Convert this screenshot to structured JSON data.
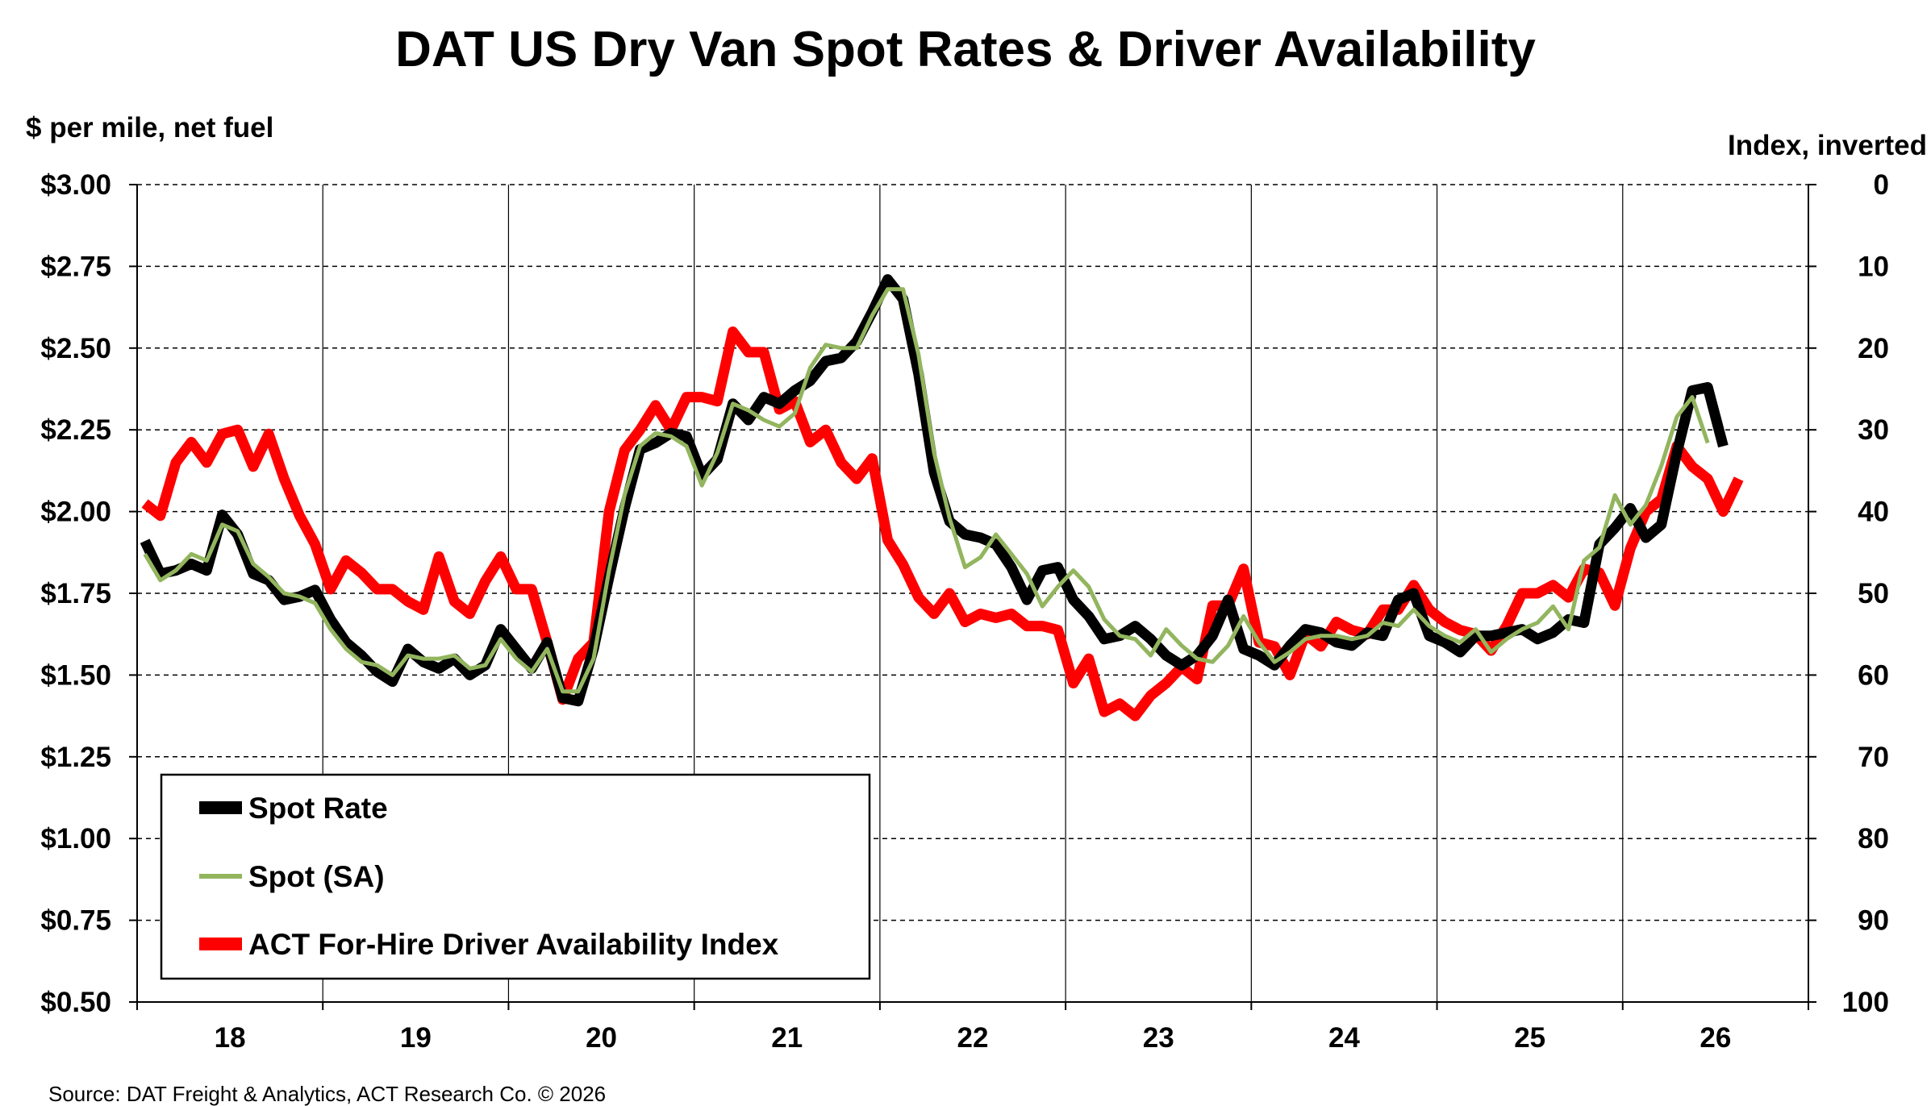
{
  "chart_data": {
    "type": "line",
    "title": "DAT US Dry Van Spot Rates & Driver Availability",
    "ylabel_left": "$ per mile, net fuel",
    "ylabel_right": "Index, inverted",
    "source": "Source: DAT Freight & Analytics, ACT Research Co. © 2026",
    "ylim_left": [
      0.5,
      3.0
    ],
    "ylim_right": [
      0,
      100
    ],
    "right_axis_inverted": true,
    "left_ticks": [
      "$3.00",
      "$2.75",
      "$2.50",
      "$2.25",
      "$2.00",
      "$1.75",
      "$1.50",
      "$1.25",
      "$1.00",
      "$0.75",
      "$0.50"
    ],
    "left_tick_values": [
      3.0,
      2.75,
      2.5,
      2.25,
      2.0,
      1.75,
      1.5,
      1.25,
      1.0,
      0.75,
      0.5
    ],
    "right_ticks": [
      "0",
      "10",
      "20",
      "30",
      "40",
      "50",
      "60",
      "70",
      "80",
      "90",
      "100"
    ],
    "right_tick_values": [
      0,
      10,
      20,
      30,
      40,
      50,
      60,
      70,
      80,
      90,
      100
    ],
    "x_ticks": [
      "18",
      "19",
      "20",
      "21",
      "22",
      "23",
      "24",
      "25",
      "26"
    ],
    "x_tick_values": [
      2018.5,
      2019.5,
      2020.5,
      2021.5,
      2022.5,
      2023.5,
      2024.5,
      2025.5,
      2026.5
    ],
    "xlim": [
      2018,
      2027
    ],
    "x_gridlines": [
      2019,
      2020,
      2021,
      2022,
      2023,
      2024,
      2025,
      2026
    ],
    "grid": "dashed horizontal, solid vertical year separators",
    "legend_position": "bottom-left",
    "series": [
      {
        "name": "Spot Rate",
        "axis": "left",
        "color": "#000000",
        "style": "thick",
        "x_start": 2018.0417,
        "x_step": 0.08333,
        "values": [
          1.91,
          1.81,
          1.82,
          1.84,
          1.82,
          1.99,
          1.93,
          1.81,
          1.79,
          1.73,
          1.74,
          1.76,
          1.67,
          1.6,
          1.56,
          1.51,
          1.48,
          1.58,
          1.54,
          1.52,
          1.55,
          1.5,
          1.53,
          1.64,
          1.58,
          1.52,
          1.6,
          1.43,
          1.42,
          1.58,
          1.8,
          2.01,
          2.19,
          2.21,
          2.24,
          2.23,
          2.11,
          2.16,
          2.33,
          2.28,
          2.35,
          2.33,
          2.37,
          2.4,
          2.46,
          2.47,
          2.52,
          2.61,
          2.71,
          2.65,
          2.42,
          2.12,
          1.97,
          1.93,
          1.92,
          1.9,
          1.83,
          1.73,
          1.82,
          1.83,
          1.73,
          1.68,
          1.61,
          1.62,
          1.65,
          1.61,
          1.56,
          1.53,
          1.56,
          1.62,
          1.73,
          1.58,
          1.56,
          1.53,
          1.59,
          1.64,
          1.63,
          1.6,
          1.59,
          1.63,
          1.62,
          1.73,
          1.75,
          1.62,
          1.6,
          1.57,
          1.62,
          1.62,
          1.63,
          1.64,
          1.61,
          1.63,
          1.67,
          1.66,
          1.9,
          1.95,
          2.01,
          1.92,
          1.96,
          2.18,
          2.37,
          2.38,
          2.2
        ]
      },
      {
        "name": "Spot (SA)",
        "axis": "left",
        "color": "#92b55e",
        "style": "thin",
        "x_start": 2018.0417,
        "x_step": 0.08333,
        "values": [
          1.87,
          1.79,
          1.82,
          1.87,
          1.85,
          1.96,
          1.94,
          1.84,
          1.8,
          1.75,
          1.74,
          1.72,
          1.64,
          1.58,
          1.54,
          1.53,
          1.5,
          1.56,
          1.55,
          1.55,
          1.56,
          1.52,
          1.53,
          1.61,
          1.55,
          1.51,
          1.58,
          1.45,
          1.45,
          1.55,
          1.82,
          2.05,
          2.2,
          2.24,
          2.23,
          2.2,
          2.08,
          2.18,
          2.33,
          2.31,
          2.28,
          2.26,
          2.3,
          2.44,
          2.51,
          2.5,
          2.5,
          2.6,
          2.68,
          2.68,
          2.48,
          2.18,
          1.98,
          1.83,
          1.86,
          1.93,
          1.87,
          1.81,
          1.71,
          1.77,
          1.82,
          1.77,
          1.67,
          1.62,
          1.61,
          1.56,
          1.64,
          1.59,
          1.55,
          1.54,
          1.59,
          1.68,
          1.6,
          1.54,
          1.57,
          1.61,
          1.62,
          1.62,
          1.61,
          1.62,
          1.66,
          1.65,
          1.7,
          1.65,
          1.62,
          1.6,
          1.64,
          1.57,
          1.61,
          1.64,
          1.66,
          1.71,
          1.64,
          1.85,
          1.89,
          2.05,
          1.96,
          2.02,
          2.14,
          2.29,
          2.35,
          2.21
        ]
      },
      {
        "name": "ACT For-Hire Driver Availability Index",
        "axis": "right",
        "color": "#ff0000",
        "style": "thick",
        "x_start": 2018.0417,
        "x_step": 0.08333,
        "values": [
          39,
          40.5,
          34,
          31.5,
          34,
          30.5,
          30,
          34.5,
          30.5,
          36,
          40.5,
          44,
          49.5,
          46,
          47.5,
          49.5,
          49.5,
          51,
          52,
          45.5,
          51,
          52.5,
          48.5,
          45.5,
          49.5,
          49.5,
          56,
          63,
          58,
          56,
          40,
          32.5,
          30,
          27,
          30,
          26,
          26,
          26.5,
          18,
          20.5,
          20.5,
          27.5,
          26.5,
          31.5,
          30,
          34,
          36,
          33.5,
          43.5,
          46.5,
          50.5,
          52.5,
          50,
          53.5,
          52.5,
          53,
          52.5,
          54,
          54,
          54.5,
          61,
          58,
          64.5,
          63.5,
          65,
          62.5,
          61,
          59,
          60.5,
          51.5,
          51.5,
          47,
          56,
          56.5,
          60,
          55,
          56.5,
          53.5,
          54.5,
          55,
          52,
          52,
          49,
          52,
          53.5,
          54.5,
          55,
          57,
          54,
          50,
          50,
          49,
          50.5,
          47,
          47.5,
          51.5,
          44.5,
          40,
          38.5,
          32,
          34.5,
          36,
          40,
          36
        ]
      }
    ]
  },
  "legend": {
    "items": [
      "Spot Rate",
      "Spot (SA)",
      "ACT For-Hire Driver Availability Index"
    ]
  },
  "colors": {
    "spot_rate": "#000000",
    "spot_sa": "#92b55e",
    "driver_index": "#ff0000",
    "grid": "#000000",
    "background": "#ffffff"
  }
}
